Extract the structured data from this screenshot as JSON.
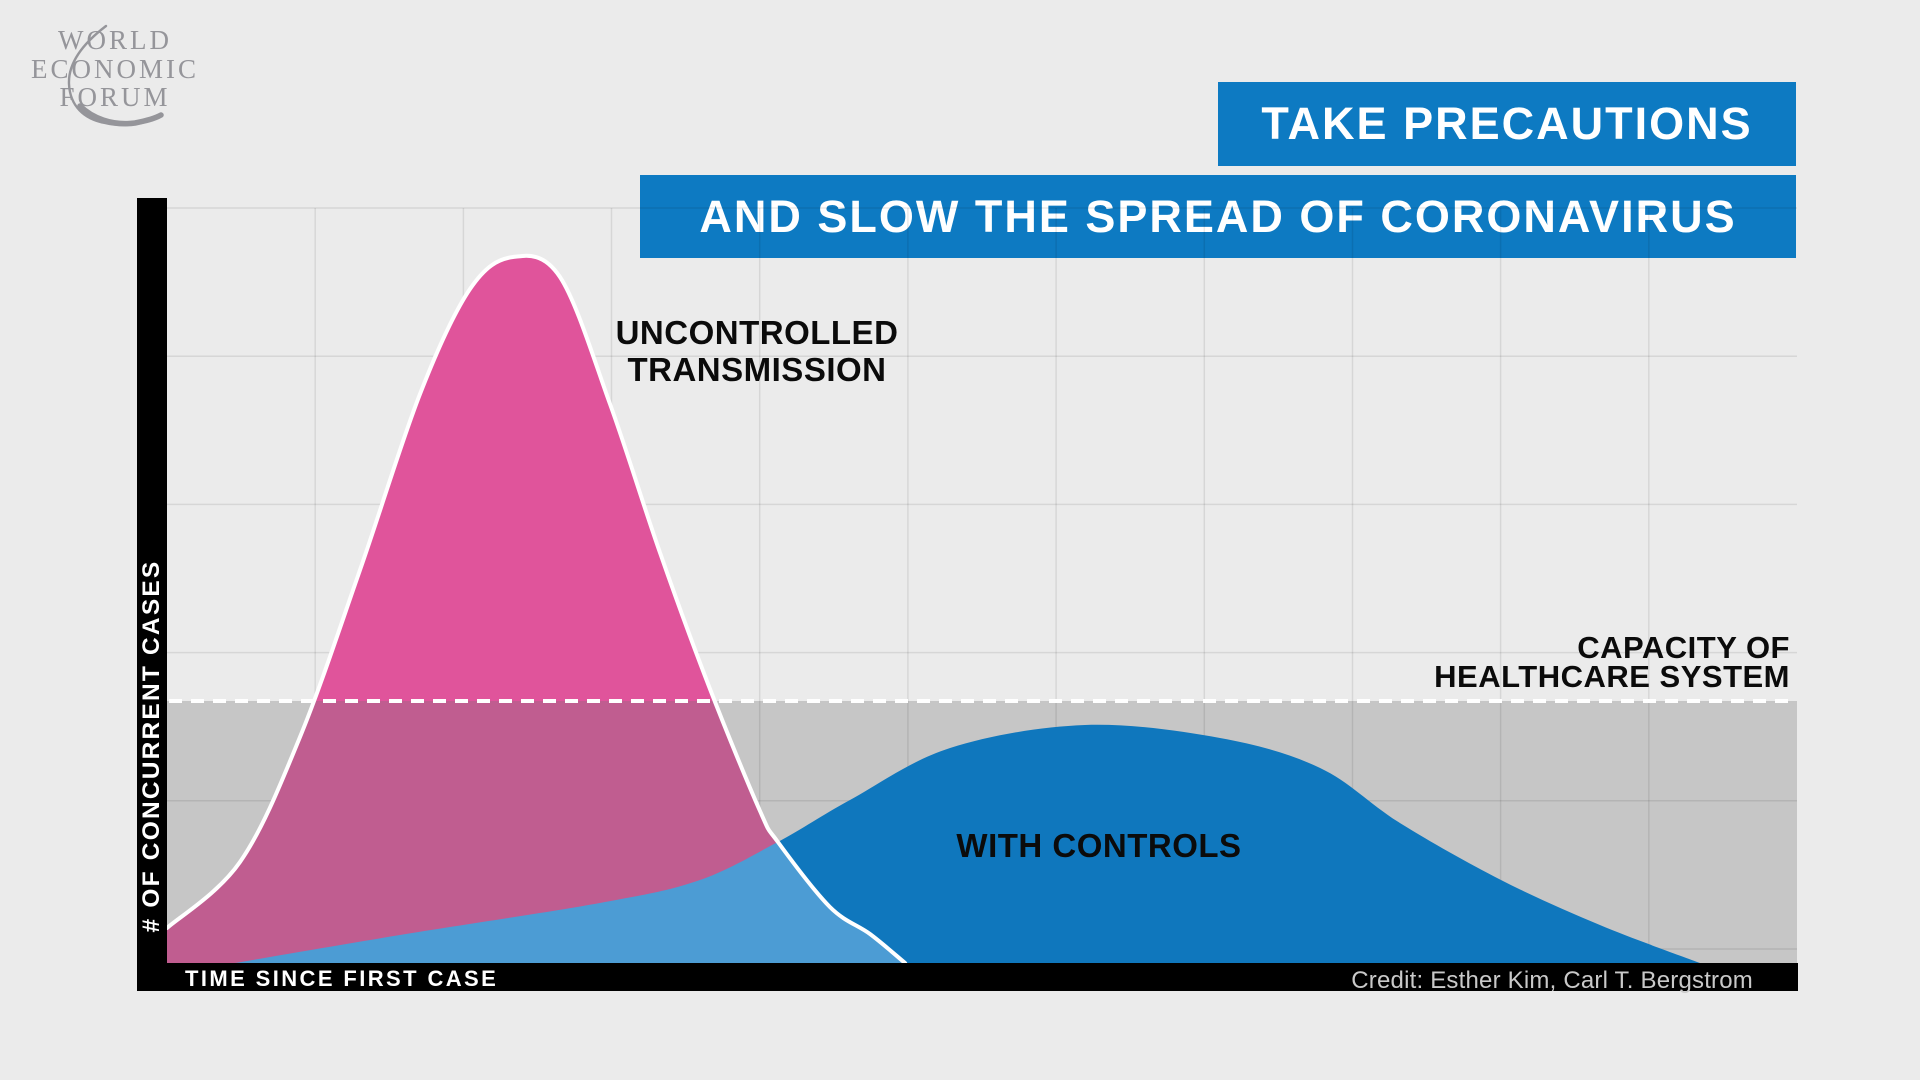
{
  "page": {
    "background": "#ebebeb"
  },
  "logo": {
    "line1": "WORLD",
    "line2": "ECONOMIC",
    "line3": "FORUM",
    "color": "#95959a"
  },
  "banner": {
    "line1": "TAKE PRECAUTIONS",
    "line2": "AND SLOW THE SPREAD OF CORONAVIRUS",
    "background": "#0d7ac2",
    "text_color": "#ffffff"
  },
  "labels": {
    "uncontrolled_line1": "UNCONTROLLED",
    "uncontrolled_line2": "TRANSMISSION",
    "controls": "WITH CONTROLS",
    "capacity_line1": "CAPACITY OF",
    "capacity_line2": "HEALTHCARE SYSTEM"
  },
  "credit": "Credit: Esther Kim, Carl T. Bergstrom",
  "chart_data": {
    "type": "area",
    "title": "TAKE PRECAUTIONS AND SLOW THE SPREAD OF CORONAVIRUS",
    "xlabel": "TIME SINCE FIRST CASE",
    "ylabel": "# OF CONCURRENT CASES",
    "x_unit": "relative time (fraction of plot width)",
    "y_unit": "relative concurrent cases (fraction of plot height)",
    "grid": {
      "columns": 11,
      "rows": 5,
      "visible": true
    },
    "capacity_line": {
      "label": "CAPACITY OF HEALTHCARE SYSTEM",
      "y": 0.347,
      "style": "dashed",
      "color": "#ffffff"
    },
    "band_below_capacity_color": "#c6c6c6",
    "series": [
      {
        "name": "UNCONTROLLED TRANSMISSION",
        "peak_x": 0.212,
        "peak_y": 0.935,
        "color_above_capacity": "#e0549b",
        "color_below_capacity": "#c05d90",
        "outline_color": "#ffffff",
        "crossing_index": 12,
        "points": [
          [
            0.0,
            0.0464
          ],
          [
            0.0448,
            0.1338
          ],
          [
            0.0816,
            0.2993
          ],
          [
            0.1184,
            0.5205
          ],
          [
            0.1552,
            0.7536
          ],
          [
            0.1859,
            0.8927
          ],
          [
            0.2123,
            0.9351
          ],
          [
            0.2411,
            0.9086
          ],
          [
            0.2718,
            0.7404
          ],
          [
            0.3025,
            0.543
          ],
          [
            0.3331,
            0.3629
          ],
          [
            0.3638,
            0.2013
          ],
          [
            0.3748,
            0.1603
          ],
          [
            0.4067,
            0.0742
          ],
          [
            0.4313,
            0.0384
          ],
          [
            0.4528,
            0.0
          ]
        ]
      },
      {
        "name": "WITH CONTROLS",
        "peak_x": 0.563,
        "peak_y": 0.315,
        "color": "#0f77bd",
        "overlap_color": "#4c9cd4",
        "crossing_index": 4,
        "points": [
          [
            0.0417,
            0.0
          ],
          [
            0.1429,
            0.0371
          ],
          [
            0.2656,
            0.0795
          ],
          [
            0.327,
            0.1099
          ],
          [
            0.3748,
            0.1603
          ],
          [
            0.419,
            0.2159
          ],
          [
            0.4804,
            0.2848
          ],
          [
            0.5632,
            0.3152
          ],
          [
            0.646,
            0.298
          ],
          [
            0.7074,
            0.2583
          ],
          [
            0.7564,
            0.1854
          ],
          [
            0.8184,
            0.1099
          ],
          [
            0.8791,
            0.0503
          ],
          [
            0.9405,
            0.0
          ]
        ]
      }
    ],
    "curves_intersection": {
      "x": 0.3748,
      "y": 0.1603
    },
    "legend_position": "on-chart annotations"
  }
}
